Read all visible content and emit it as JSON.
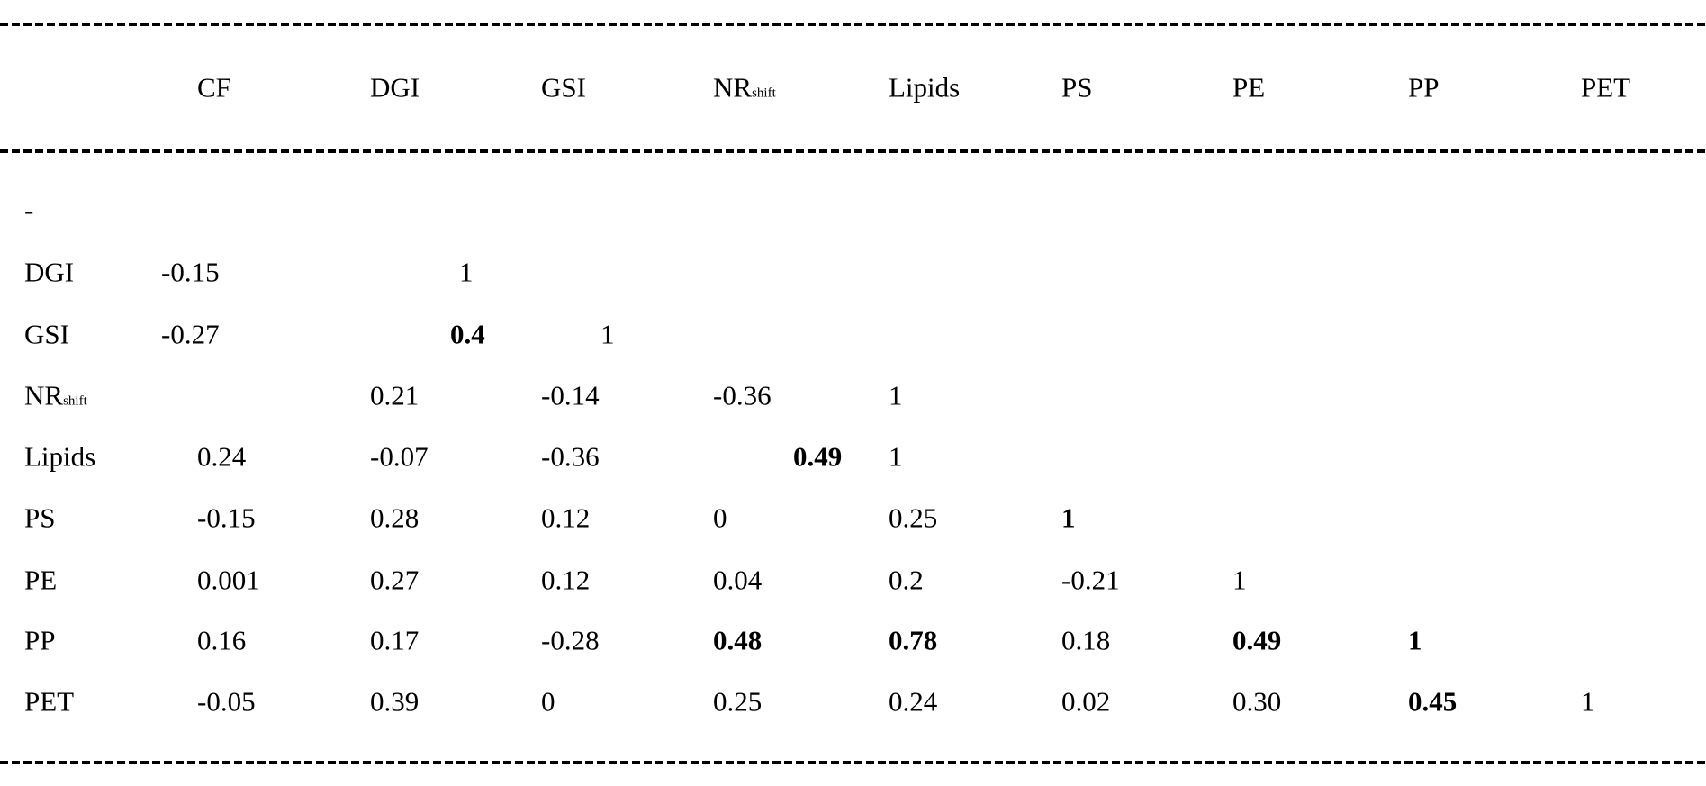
{
  "table": {
    "header": [
      "CF",
      "DGI",
      "GSI",
      {
        "text": "NR",
        "sub": "shift"
      },
      "Lipids",
      "PS",
      "PE",
      "PP",
      "PET"
    ],
    "rows": [
      {
        "label": "-",
        "cells": []
      },
      {
        "label": "DGI",
        "cells": [
          "-0.15",
          "1"
        ]
      },
      {
        "label": "GSI",
        "cells": [
          "-0.27",
          {
            "text": "0.4",
            "bold": true
          },
          "1"
        ]
      },
      {
        "label": {
          "text": "NR",
          "sub": "shift"
        },
        "cells": [
          null,
          "0.21",
          "-0.14",
          "-0.36",
          "1"
        ]
      },
      {
        "label": "Lipids",
        "cells": [
          "0.24",
          "-0.07",
          "-0.36",
          {
            "text": "0.49",
            "bold": true
          },
          "1"
        ]
      },
      {
        "label": "PS",
        "cells": [
          "-0.15",
          "0.28",
          "0.12",
          "0",
          "0.25",
          {
            "text": "1",
            "bold": true
          }
        ]
      },
      {
        "label": "PE",
        "cells": [
          "0.001",
          "0.27",
          "0.12",
          "0.04",
          "0.2",
          "-0.21",
          "1"
        ]
      },
      {
        "label": "PP",
        "cells": [
          "0.16",
          "0.17",
          "-0.28",
          {
            "text": "0.48",
            "bold": true
          },
          {
            "text": "0.78",
            "bold": true
          },
          "0.18",
          {
            "text": "0.49",
            "bold": true
          },
          {
            "text": "1",
            "bold": true
          }
        ]
      },
      {
        "label": "PET",
        "cells": [
          "-0.05",
          "0.39",
          "0",
          "0.25",
          "0.24",
          "0.02",
          "0.30",
          {
            "text": "0.45",
            "bold": true
          },
          "1"
        ]
      }
    ]
  }
}
